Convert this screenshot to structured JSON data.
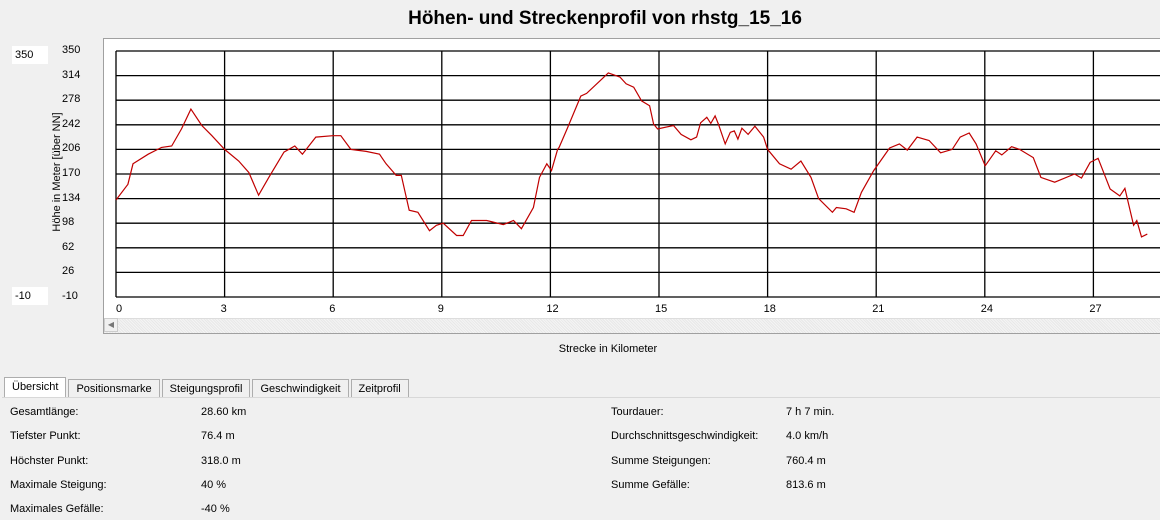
{
  "title": "Höhen- und Streckenprofil von rhstg_15_16",
  "y_max_input": "350",
  "y_min_input": "-10",
  "chart_data": {
    "type": "line",
    "title": "Höhen- und Streckenprofil von rhstg_15_16",
    "xlabel": "Strecke in Kilometer",
    "ylabel": "Höhe in Meter [über NN]",
    "ylim": [
      -10,
      350
    ],
    "xlim": [
      0,
      29.7
    ],
    "grid": true,
    "color": "#c00000",
    "yticks": [
      "350",
      "314",
      "278",
      "242",
      "206",
      "170",
      "134",
      "98",
      "62",
      "26",
      "-10"
    ],
    "xticks": [
      "0",
      "3",
      "6",
      "9",
      "12",
      "15",
      "18",
      "21",
      "24",
      "27"
    ],
    "x": [
      0,
      0.33,
      0.47,
      0.89,
      1.26,
      1.54,
      1.81,
      2.07,
      2.37,
      2.65,
      3,
      3.39,
      3.67,
      3.94,
      4.22,
      4.64,
      4.94,
      5.15,
      5.52,
      5.99,
      6.21,
      6.49,
      6.91,
      7.28,
      7.46,
      7.74,
      7.88,
      8.1,
      8.34,
      8.66,
      8.85,
      9.04,
      9.41,
      9.59,
      9.82,
      10.24,
      10.7,
      10.98,
      11.2,
      11.53,
      11.7,
      11.9,
      12.03,
      12.2,
      12.24,
      12.46,
      12.84,
      13,
      13.38,
      13.6,
      13.92,
      14.09,
      14.3,
      14.52,
      14.74,
      14.85,
      14.96,
      15.4,
      15.61,
      15.88,
      16.04,
      16.15,
      16.32,
      16.43,
      16.55,
      16.64,
      16.83,
      16.97,
      17.08,
      17.18,
      17.29,
      17.46,
      17.65,
      17.89,
      18,
      18.33,
      18.65,
      18.92,
      19.2,
      19.41,
      19.79,
      19.9,
      20.17,
      20.39,
      20.59,
      20.93,
      21.37,
      21.64,
      21.86,
      22.13,
      22.46,
      22.78,
      23.1,
      23.32,
      23.57,
      23.76,
      24.01,
      24.3,
      24.47,
      24.74,
      24.96,
      25.34,
      25.55,
      25.93,
      26.48,
      26.67,
      26.91,
      27.13,
      27.46,
      27.73,
      27.87,
      28.11,
      28.2,
      28.33,
      28.49
    ],
    "y": [
      132,
      155,
      185,
      199,
      209,
      211,
      236,
      265,
      241,
      226,
      206,
      189,
      172,
      139,
      165,
      202,
      211,
      199,
      224,
      226,
      226,
      206,
      203,
      199,
      185,
      168,
      168,
      117,
      114,
      87,
      95,
      98,
      80,
      80,
      102,
      102,
      96,
      102,
      90,
      121,
      165,
      185,
      175,
      206,
      209,
      236,
      284,
      288,
      307,
      318,
      312,
      302,
      297,
      277,
      270,
      243,
      236,
      241,
      228,
      220,
      224,
      245,
      253,
      244,
      255,
      243,
      214,
      231,
      233,
      221,
      237,
      228,
      240,
      224,
      206,
      185,
      177,
      189,
      165,
      134,
      114,
      121,
      119,
      114,
      143,
      175,
      208,
      214,
      205,
      224,
      219,
      201,
      206,
      224,
      230,
      214,
      182,
      204,
      198,
      210,
      206,
      194,
      165,
      158,
      170,
      164,
      187,
      193,
      148,
      138,
      149,
      95,
      102,
      78,
      82
    ]
  },
  "tabs": [
    "Übersicht",
    "Positionsmarke",
    "Steigungsprofil",
    "Geschwindigkeit",
    "Zeitprofil"
  ],
  "stats_left": [
    {
      "label": "Gesamtlänge:",
      "value": "28.60 km"
    },
    {
      "label": "Tiefster Punkt:",
      "value": "76.4 m"
    },
    {
      "label": "Höchster Punkt:",
      "value": "318.0 m"
    },
    {
      "label": "Maximale Steigung:",
      "value": "40 %"
    },
    {
      "label": "Maximales Gefälle:",
      "value": "-40 %"
    }
  ],
  "stats_right": [
    {
      "label": "Tourdauer:",
      "value": "7 h 7 min."
    },
    {
      "label": "Durchschnittsgeschwindigkeit:",
      "value": "4.0 km/h"
    },
    {
      "label": "Summe Steigungen:",
      "value": "760.4 m"
    },
    {
      "label": "Summe Gefälle:",
      "value": "813.6 m"
    }
  ]
}
